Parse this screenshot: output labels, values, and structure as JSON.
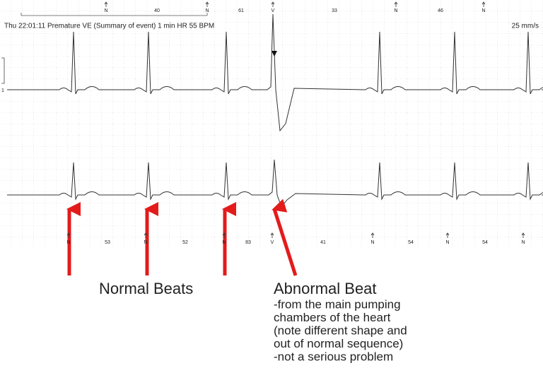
{
  "header": {
    "event": "Thu 22:01:11 Premature VE  (Summary of event) 1 min HR 55 BPM",
    "speed": "25 mm/s",
    "lead": "1"
  },
  "top_markers": [
    "N",
    "40",
    "N",
    "61",
    "V",
    "33",
    "N",
    "46",
    "N"
  ],
  "bottom_markers": [
    "N",
    "53",
    "N",
    "52",
    "N",
    "83",
    "V",
    "41",
    "N",
    "54",
    "N",
    "54",
    "N"
  ],
  "annotations": {
    "normal": "Normal Beats",
    "abnormal_title": "Abnormal Beat",
    "abnormal_lines": [
      "-from the main pumping",
      "chambers of the heart",
      "(note different shape and",
      "out of normal sequence)",
      "-not a serious problem"
    ]
  }
}
